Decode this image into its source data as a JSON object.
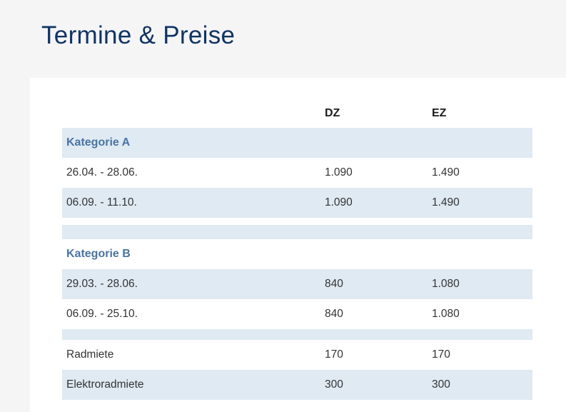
{
  "page": {
    "title": "Termine & Preise",
    "colors": {
      "page_background": "#f5f5f6",
      "card_background": "#ffffff",
      "title_navy": "#113463",
      "section_header_blue": "#4a74a3",
      "row_stripe_blue": "#dfeaf3",
      "body_text": "#333333"
    }
  },
  "table": {
    "columns": [
      "",
      "DZ",
      "EZ"
    ],
    "sections": [
      {
        "header": "Kategorie A",
        "rows": [
          {
            "label": "26.04. - 28.06.",
            "dz": "1.090",
            "ez": "1.490"
          },
          {
            "label": "06.09. - 11.10.",
            "dz": "1.090",
            "ez": "1.490"
          }
        ]
      },
      {
        "header": "Kategorie B",
        "rows": [
          {
            "label": "29.03. - 28.06.",
            "dz": "840",
            "ez": "1.080"
          },
          {
            "label": "06.09. - 25.10.",
            "dz": "840",
            "ez": "1.080"
          }
        ]
      }
    ],
    "extras": [
      {
        "label": "Radmiete",
        "dz": "170",
        "ez": "170"
      },
      {
        "label": "Elektroradmiete",
        "dz": "300",
        "ez": "300"
      }
    ]
  }
}
